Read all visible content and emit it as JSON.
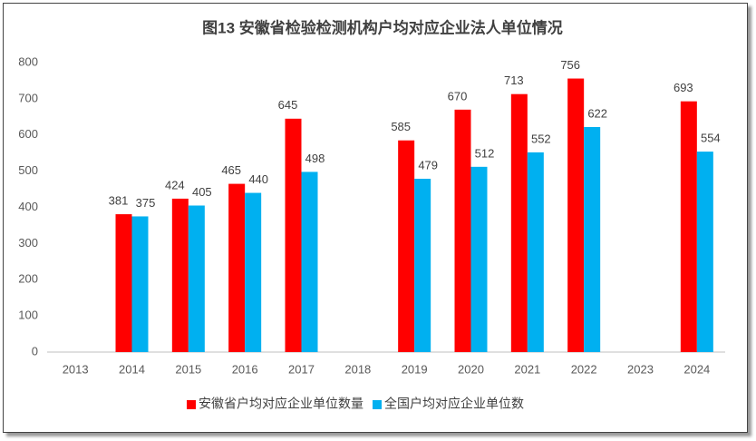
{
  "chart_data": {
    "type": "bar",
    "title": "图13  安徽省检验检测机构户均对应企业法人单位情况",
    "categories": [
      "2013",
      "2014",
      "2015",
      "2016",
      "2017",
      "2018",
      "2019",
      "2020",
      "2021",
      "2022",
      "2023",
      "2024"
    ],
    "series": [
      {
        "name": "安徽省户均对应企业单位数量",
        "color": "#ff0000",
        "values": [
          null,
          381,
          424,
          465,
          645,
          null,
          585,
          670,
          713,
          756,
          null,
          693
        ]
      },
      {
        "name": "全国户均对应企业单位数",
        "color": "#00b0f0",
        "values": [
          null,
          375,
          405,
          440,
          498,
          null,
          479,
          512,
          552,
          622,
          null,
          554
        ]
      }
    ],
    "ylim": [
      0,
      800
    ],
    "yticks": [
      0,
      100,
      200,
      300,
      400,
      500,
      600,
      700,
      800
    ],
    "grid": false,
    "legend": "bottom"
  }
}
